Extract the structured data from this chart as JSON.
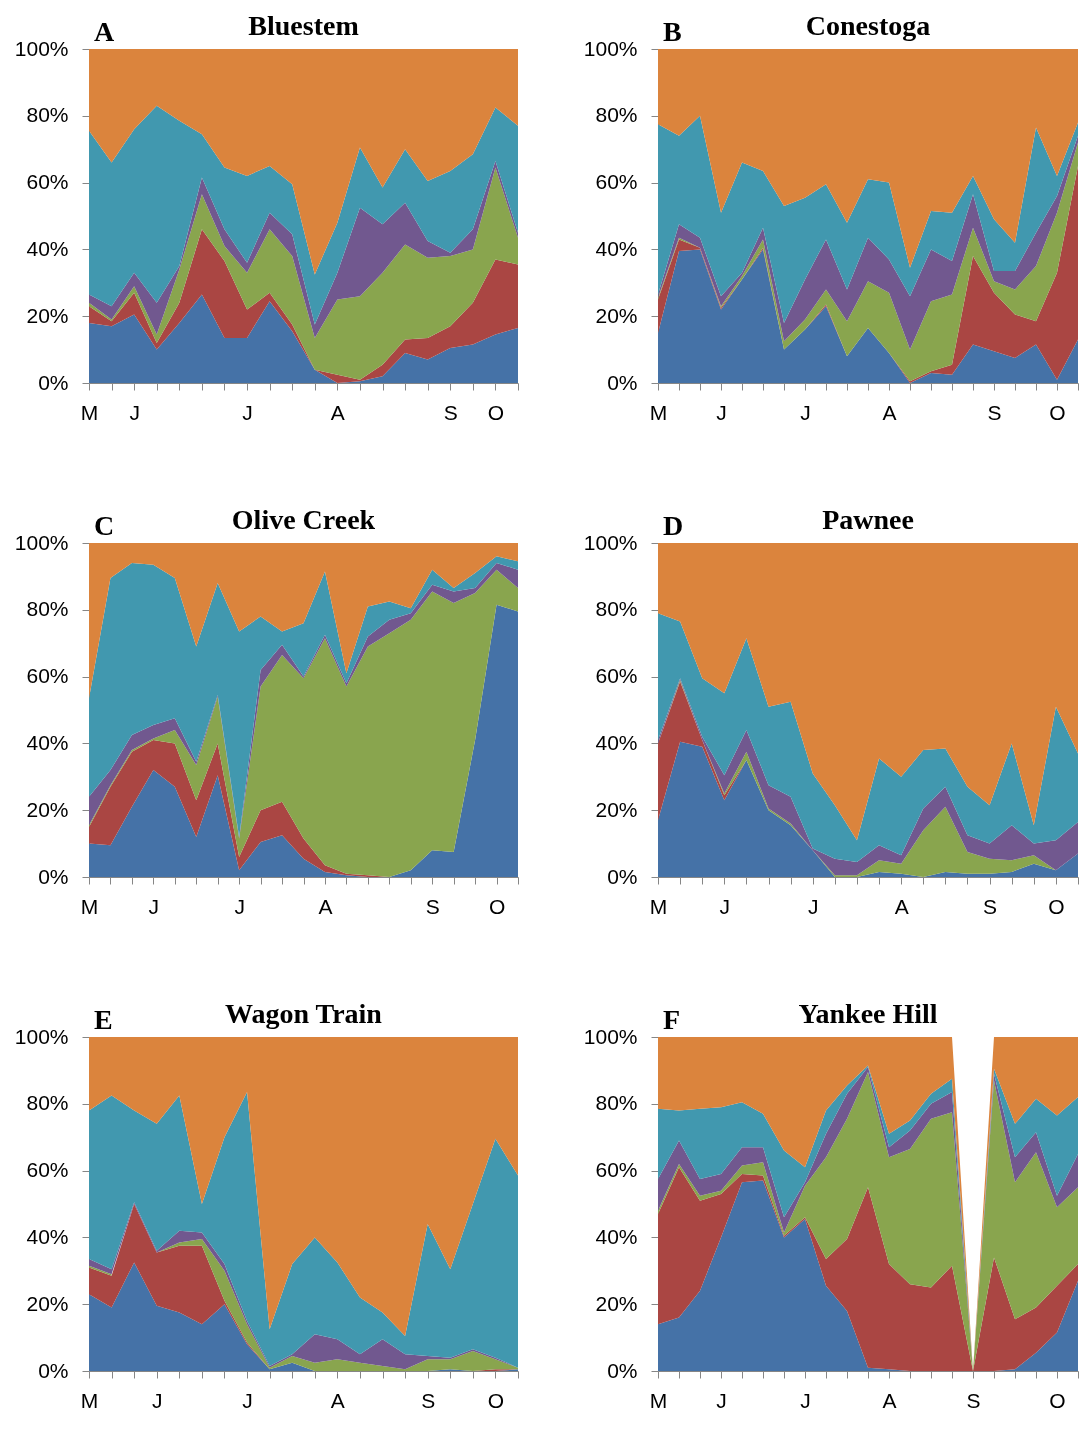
{
  "chart_data": [
    {
      "type": "area",
      "stacked": true,
      "title": "Bluestem",
      "annotations": [
        "A"
      ],
      "categories": [
        "M",
        null,
        "J",
        null,
        null,
        null,
        null,
        "J",
        null,
        null,
        null,
        "A",
        null,
        null,
        null,
        null,
        "S",
        null,
        "O",
        null
      ],
      "ylim": [
        0,
        100
      ],
      "yticks": [
        {
          "value": 0,
          "label": "0%"
        },
        {
          "value": 20,
          "label": "20%"
        },
        {
          "value": 40,
          "label": "40%"
        },
        {
          "value": 60,
          "label": "60%"
        },
        {
          "value": 80,
          "label": "80%"
        },
        {
          "value": 100,
          "label": "100%"
        }
      ],
      "series": [
        {
          "color": "#4572a7",
          "values": [
            18,
            17,
            20.5,
            10,
            18,
            26.5,
            13.5,
            13.5,
            24.5,
            15.5,
            4,
            0,
            0.5,
            2,
            9,
            7,
            10.5,
            11.5,
            14.5,
            16.5
          ]
        },
        {
          "color": "#aa4643",
          "values": [
            5,
            1.5,
            6.5,
            2,
            6,
            19.5,
            23,
            8.5,
            2.5,
            2,
            0,
            2.5,
            0.5,
            3.5,
            4,
            6.5,
            6.5,
            12.5,
            22.5,
            19
          ]
        },
        {
          "color": "#89a54e",
          "values": [
            1,
            0.5,
            2,
            2.5,
            10,
            10.5,
            4.5,
            11,
            19,
            20.5,
            9.5,
            22.5,
            25,
            27.5,
            28.5,
            24,
            21,
            16,
            27.5,
            8
          ]
        },
        {
          "color": "#71588f",
          "values": [
            2.5,
            4,
            4,
            9.5,
            1,
            5,
            5,
            3,
            5,
            6.5,
            4,
            8,
            26.5,
            14.5,
            12.5,
            5,
            1,
            6,
            2,
            1.5
          ]
        },
        {
          "color": "#4198af",
          "values": [
            49,
            43,
            43,
            59,
            43.5,
            13,
            18.5,
            26,
            14,
            15,
            15,
            15,
            18,
            11,
            16,
            18,
            24.5,
            22.5,
            16,
            32
          ]
        },
        {
          "color": "#db843d",
          "values": [
            24.5,
            34,
            24,
            17,
            21.5,
            25.5,
            35.5,
            38,
            35,
            40.5,
            67.5,
            52,
            29.5,
            41.5,
            30,
            39.5,
            36.5,
            31.5,
            17.5,
            23
          ]
        }
      ]
    },
    {
      "type": "area",
      "stacked": true,
      "title": "Conestoga",
      "annotations": [
        "B"
      ],
      "categories": [
        "M",
        null,
        null,
        "J",
        null,
        null,
        null,
        "J",
        null,
        null,
        null,
        "A",
        null,
        null,
        null,
        null,
        "S",
        null,
        null,
        "O",
        null
      ],
      "ylim": [
        0,
        100
      ],
      "yticks": [
        {
          "value": 0,
          "label": "0%"
        },
        {
          "value": 20,
          "label": "20%"
        },
        {
          "value": 40,
          "label": "40%"
        },
        {
          "value": 60,
          "label": "60%"
        },
        {
          "value": 80,
          "label": "80%"
        },
        {
          "value": 100,
          "label": "100%"
        }
      ],
      "series": [
        {
          "color": "#4572a7",
          "values": [
            15,
            39.5,
            40,
            22,
            31,
            40,
            10,
            16,
            23,
            8,
            16.5,
            9,
            0,
            3,
            2.5,
            11.5,
            9.5,
            7.5,
            11.5,
            1,
            13
          ]
        },
        {
          "color": "#aa4643",
          "values": [
            10,
            3.5,
            0.5,
            0.5,
            0,
            0.5,
            0,
            0,
            0.5,
            0,
            0,
            0,
            0.5,
            0.5,
            3,
            26.5,
            17.5,
            13,
            7,
            32,
            52
          ]
        },
        {
          "color": "#89a54e",
          "values": [
            0.5,
            0.5,
            0,
            0.5,
            1,
            2.5,
            2.5,
            3,
            4.5,
            10.5,
            14,
            18,
            9.5,
            21,
            21,
            8.5,
            3.5,
            7.5,
            16.5,
            18,
            7
          ]
        },
        {
          "color": "#71588f",
          "values": [
            1,
            4,
            3,
            3,
            1,
            3.5,
            5.5,
            12,
            15,
            9.5,
            13,
            10,
            16,
            15.5,
            10,
            10,
            3,
            5.5,
            10,
            5,
            2
          ]
        },
        {
          "color": "#4198af",
          "values": [
            51,
            26.5,
            36.5,
            25,
            33,
            17,
            35,
            24.5,
            16.5,
            20,
            17.5,
            23,
            8.5,
            11.5,
            14.5,
            5.5,
            15.5,
            8.5,
            31.5,
            6,
            4
          ]
        },
        {
          "color": "#db843d",
          "values": [
            22.5,
            26,
            20,
            49,
            34,
            36.5,
            47,
            44.5,
            40.5,
            52,
            39,
            40,
            65.5,
            48.5,
            49,
            38,
            51,
            58,
            23.5,
            38,
            22
          ]
        }
      ]
    },
    {
      "type": "area",
      "stacked": true,
      "title": "Olive Creek",
      "annotations": [
        "C"
      ],
      "categories": [
        "M",
        null,
        null,
        "J",
        null,
        null,
        null,
        "J",
        null,
        null,
        null,
        "A",
        null,
        null,
        null,
        null,
        "S",
        null,
        null,
        "O",
        null
      ],
      "ylim": [
        0,
        100
      ],
      "yticks": [
        {
          "value": 0,
          "label": "0%"
        },
        {
          "value": 20,
          "label": "20%"
        },
        {
          "value": 40,
          "label": "40%"
        },
        {
          "value": 60,
          "label": "60%"
        },
        {
          "value": 80,
          "label": "80%"
        },
        {
          "value": 100,
          "label": "100%"
        }
      ],
      "series": [
        {
          "color": "#4572a7",
          "values": [
            10,
            9.5,
            21,
            32,
            27,
            12,
            30.5,
            2,
            10.5,
            12.5,
            5.5,
            1.5,
            0.5,
            0,
            0,
            2,
            8,
            7.5,
            41,
            81.5,
            79.5
          ]
        },
        {
          "color": "#aa4643",
          "values": [
            5,
            17.5,
            16.5,
            9,
            13,
            11,
            9.5,
            4,
            9.5,
            10,
            6,
            2,
            0.5,
            0.5,
            0,
            0,
            0,
            0,
            0,
            null,
            null
          ]
        },
        {
          "color": "#89a54e",
          "values": [
            0.5,
            0.5,
            0.5,
            0.5,
            4,
            10.5,
            14,
            5.5,
            37,
            44,
            48,
            68,
            56,
            68.5,
            73,
            75,
            77.5,
            74.5,
            44,
            10.5,
            7
          ]
        },
        {
          "color": "#71588f",
          "values": [
            8.5,
            4.5,
            4.5,
            4,
            3.5,
            1,
            0.5,
            0.5,
            5,
            3,
            0.5,
            1,
            1,
            3,
            4,
            2,
            2,
            3.5,
            1.5,
            2,
            5.5
          ]
        },
        {
          "color": "#4198af",
          "values": [
            29.5,
            57.5,
            51.5,
            48,
            42,
            34.5,
            33.5,
            61.5,
            16,
            4,
            16,
            19,
            3,
            9,
            5.5,
            1.5,
            4.5,
            1,
            4.5,
            2,
            2.5
          ]
        },
        {
          "color": "#db843d",
          "values": [
            46.5,
            10.5,
            6,
            6.5,
            10.5,
            31,
            12,
            26.5,
            22,
            26.5,
            24,
            8.5,
            39,
            19,
            17.5,
            19.5,
            8,
            13.5,
            9,
            4,
            5.5
          ]
        }
      ]
    },
    {
      "type": "area",
      "stacked": true,
      "title": "Pawnee",
      "annotations": [
        "D"
      ],
      "categories": [
        "M",
        null,
        null,
        "J",
        null,
        null,
        null,
        "J",
        null,
        null,
        null,
        "A",
        null,
        null,
        null,
        "S",
        null,
        null,
        "O",
        null
      ],
      "ylim": [
        0,
        100
      ],
      "yticks": [
        {
          "value": 0,
          "label": "0%"
        },
        {
          "value": 20,
          "label": "20%"
        },
        {
          "value": 40,
          "label": "40%"
        },
        {
          "value": 60,
          "label": "60%"
        },
        {
          "value": 80,
          "label": "80%"
        },
        {
          "value": 100,
          "label": "100%"
        }
      ],
      "series": [
        {
          "color": "#4572a7",
          "values": [
            17,
            40.5,
            39,
            23,
            35,
            20,
            15.5,
            8,
            0,
            0,
            1.5,
            1,
            0,
            1.5,
            1,
            1,
            1.5,
            4,
            2,
            7
          ]
        },
        {
          "color": "#aa4643",
          "values": [
            23,
            18,
            2,
            1.5,
            0,
            0,
            0,
            0,
            0,
            0,
            0,
            0,
            0,
            0,
            0,
            0,
            0,
            0,
            0,
            0
          ]
        },
        {
          "color": "#89a54e",
          "values": [
            0,
            0.5,
            0,
            0.5,
            2.5,
            0.5,
            0.5,
            0,
            0.5,
            0.5,
            3.5,
            3,
            14,
            19.5,
            6.5,
            4.5,
            3.5,
            2.5,
            0,
            0
          ]
        },
        {
          "color": "#71588f",
          "values": [
            1,
            0.5,
            1,
            5.5,
            6.5,
            7,
            8,
            0.5,
            5,
            4,
            4.5,
            2.5,
            6.5,
            6,
            5,
            4.5,
            10.5,
            3.5,
            9,
            9.5
          ]
        },
        {
          "color": "#4198af",
          "values": [
            38,
            17,
            17.5,
            24.5,
            27.5,
            23.5,
            28.5,
            22.5,
            16,
            6.5,
            26,
            23.5,
            17.5,
            11.5,
            14.5,
            11.5,
            24.5,
            5.5,
            40,
            20.5
          ]
        },
        {
          "color": "#db843d",
          "values": [
            21,
            23.5,
            40.5,
            45,
            28.5,
            49,
            47.5,
            69,
            78.5,
            89,
            64.5,
            70,
            62,
            61.5,
            73,
            78.5,
            60,
            84.5,
            49,
            63
          ]
        }
      ]
    },
    {
      "type": "area",
      "stacked": true,
      "title": "Wagon Train",
      "annotations": [
        "E"
      ],
      "categories": [
        "M",
        null,
        null,
        "J",
        null,
        null,
        null,
        "J",
        null,
        null,
        null,
        "A",
        null,
        null,
        null,
        "S",
        null,
        null,
        "O",
        null
      ],
      "ylim": [
        0,
        100
      ],
      "yticks": [
        {
          "value": 0,
          "label": "0%"
        },
        {
          "value": 20,
          "label": "20%"
        },
        {
          "value": 40,
          "label": "40%"
        },
        {
          "value": 60,
          "label": "60%"
        },
        {
          "value": 80,
          "label": "80%"
        },
        {
          "value": 100,
          "label": "100%"
        }
      ],
      "series": [
        {
          "color": "#4572a7",
          "values": [
            23,
            19,
            32.5,
            19.5,
            17.5,
            14,
            20,
            8,
            0.5,
            2.5,
            0,
            0,
            0,
            0,
            0,
            0,
            0.5,
            0,
            0,
            0.5
          ]
        },
        {
          "color": "#aa4643",
          "values": [
            8,
            9.5,
            17.5,
            16,
            20,
            23.5,
            1,
            0.5,
            0,
            0,
            0,
            0,
            0,
            0,
            0,
            0,
            0,
            0,
            0.5,
            0
          ]
        },
        {
          "color": "#89a54e",
          "values": [
            0.5,
            0.5,
            null,
            0,
            1,
            2,
            9,
            5.5,
            0.5,
            2,
            2.5,
            3.5,
            2.5,
            1.5,
            0.5,
            3.5,
            3,
            6,
            3,
            0.5
          ]
        },
        {
          "color": "#71588f",
          "values": [
            2,
            1.5,
            0.5,
            0.5,
            3.5,
            2,
            2,
            1,
            0.5,
            0.5,
            8.5,
            6,
            2.5,
            8,
            4.5,
            1,
            0.5,
            0.5,
            0.5,
            0
          ]
        },
        {
          "color": "#4198af",
          "values": [
            44.5,
            52,
            27.5,
            38,
            40.5,
            8.5,
            38,
            68.5,
            11,
            27,
            29,
            23,
            17,
            8,
            5.5,
            39.5,
            26.5,
            43.5,
            65.5,
            57.5
          ]
        },
        {
          "color": "#db843d",
          "values": [
            22,
            17.5,
            22,
            26,
            17.5,
            50,
            30,
            16.5,
            87.5,
            68,
            60,
            67.5,
            78,
            82.5,
            89.5,
            56,
            69.5,
            50,
            30.5,
            41.5
          ]
        }
      ]
    },
    {
      "type": "area",
      "stacked": true,
      "title": "Yankee Hill",
      "annotations": [
        "F"
      ],
      "categories": [
        "M",
        null,
        null,
        "J",
        null,
        null,
        null,
        "J",
        null,
        null,
        null,
        "A",
        null,
        null,
        null,
        "S",
        null,
        null,
        null,
        "O",
        null
      ],
      "ylim": [
        0,
        100
      ],
      "yticks": [
        {
          "value": 0,
          "label": "0%"
        },
        {
          "value": 20,
          "label": "20%"
        },
        {
          "value": 40,
          "label": "40%"
        },
        {
          "value": 60,
          "label": "60%"
        },
        {
          "value": 80,
          "label": "80%"
        },
        {
          "value": 100,
          "label": "100%"
        }
      ],
      "series": [
        {
          "color": "#4572a7",
          "values": [
            14,
            16,
            24,
            40,
            56.5,
            57,
            40,
            45.5,
            25.5,
            18,
            1,
            0.5,
            0,
            0,
            0,
            0,
            0,
            0.5,
            5.5,
            11.5,
            27
          ]
        },
        {
          "color": "#aa4643",
          "values": [
            33,
            45,
            27,
            13,
            2.5,
            1.5,
            0.5,
            0.5,
            8,
            21.5,
            54,
            31.5,
            26,
            25,
            31.5,
            0,
            34,
            15,
            13.5,
            14,
            5
          ]
        },
        {
          "color": "#89a54e",
          "values": [
            1,
            1,
            1.5,
            1,
            2.5,
            4,
            1,
            9.5,
            30.5,
            36,
            34.5,
            32,
            40.5,
            50.5,
            46,
            0,
            53,
            41,
            46.5,
            23.5,
            23
          ]
        },
        {
          "color": "#71588f",
          "values": [
            9.5,
            7,
            5,
            5,
            5.5,
            4.5,
            4.5,
            1,
            7,
            7.5,
            1.5,
            3,
            5.5,
            4.5,
            6,
            0,
            2,
            7.5,
            6,
            3.5,
            10
          ]
        },
        {
          "color": "#4198af",
          "values": [
            21,
            9,
            21,
            20,
            13.5,
            10,
            20,
            4.5,
            7,
            2.5,
            0.5,
            4,
            3,
            3,
            4,
            0,
            1.5,
            10,
            10,
            24,
            17
          ]
        },
        {
          "color": "#db843d",
          "values": [
            21.5,
            22,
            21.5,
            21,
            19.5,
            23,
            34,
            39,
            22,
            14.5,
            8.5,
            29,
            25,
            17,
            12.5,
            0,
            9.5,
            26,
            18.5,
            23.5,
            18
          ]
        }
      ]
    }
  ]
}
